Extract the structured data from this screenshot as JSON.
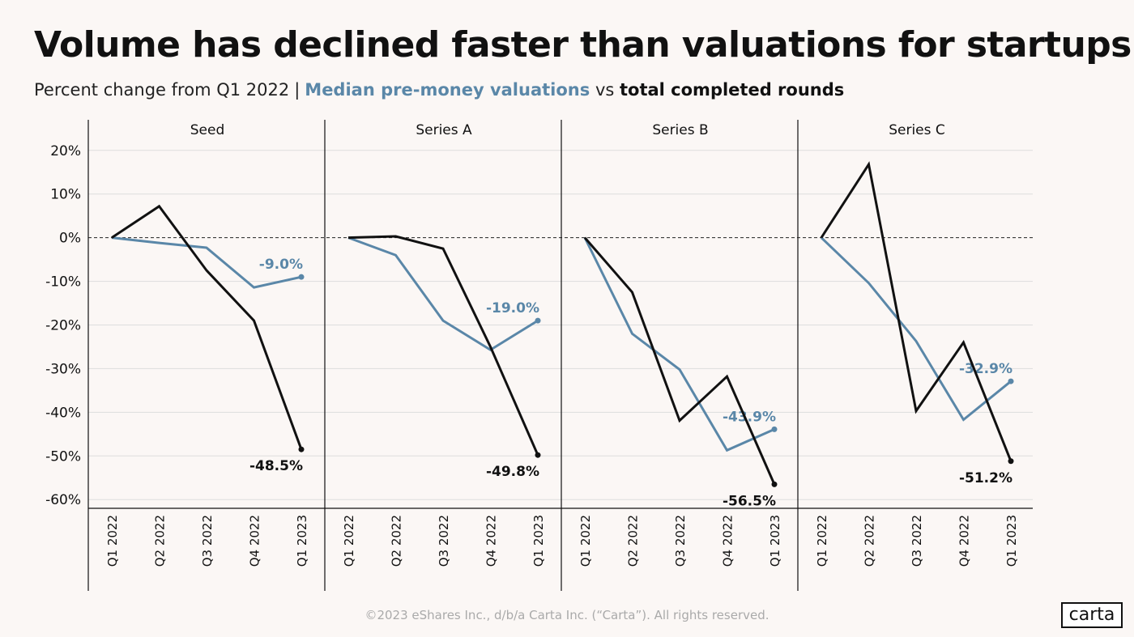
{
  "title": "Volume has declined faster than valuations for startups",
  "subtitle": {
    "prefix": "Percent change from Q1 2022",
    "separator": "|",
    "series_a_label": "Median pre-money valuations",
    "vs": "vs",
    "series_b_label": "total completed rounds"
  },
  "colors": {
    "valuations": "#5a87a8",
    "rounds": "#111111",
    "background": "#fbf7f5",
    "grid": "#dddddd"
  },
  "chart_data": [
    {
      "type": "line",
      "panel": "Seed",
      "x": [
        "Q1 2022",
        "Q2 2022",
        "Q3 2022",
        "Q4 2022",
        "Q1 2023"
      ],
      "ylim": [
        -62,
        22
      ],
      "yticks": [
        "20%",
        "10%",
        "0%",
        "-10%",
        "-20%",
        "-30%",
        "-40%",
        "-50%",
        "-60%"
      ],
      "series": [
        {
          "key": "valuations",
          "values": [
            0,
            -1.2,
            -2.3,
            -11.4,
            -9.0
          ],
          "end_label": "-9.0%"
        },
        {
          "key": "rounds",
          "values": [
            0,
            7.2,
            -7.5,
            -19.0,
            -48.5
          ],
          "end_label": "-48.5%"
        }
      ]
    },
    {
      "type": "line",
      "panel": "Series A",
      "x": [
        "Q1 2022",
        "Q2 2022",
        "Q3 2022",
        "Q4 2022",
        "Q1 2023"
      ],
      "ylim": [
        -62,
        22
      ],
      "series": [
        {
          "key": "valuations",
          "values": [
            0,
            -4.0,
            -19.0,
            -25.7,
            -19.0
          ],
          "end_label": "-19.0%"
        },
        {
          "key": "rounds",
          "values": [
            0,
            0.3,
            -2.5,
            -25.0,
            -49.8
          ],
          "end_label": "-49.8%"
        }
      ]
    },
    {
      "type": "line",
      "panel": "Series B",
      "x": [
        "Q1 2022",
        "Q2 2022",
        "Q3 2022",
        "Q4 2022",
        "Q1 2023"
      ],
      "ylim": [
        -62,
        22
      ],
      "series": [
        {
          "key": "valuations",
          "values": [
            0,
            -22.0,
            -30.2,
            -48.7,
            -43.9
          ],
          "end_label": "-43.9%"
        },
        {
          "key": "rounds",
          "values": [
            0,
            -12.5,
            -41.9,
            -31.8,
            -56.5
          ],
          "end_label": "-56.5%"
        }
      ]
    },
    {
      "type": "line",
      "panel": "Series C",
      "x": [
        "Q1 2022",
        "Q2 2022",
        "Q3 2022",
        "Q4 2022",
        "Q1 2023"
      ],
      "ylim": [
        -62,
        22
      ],
      "series": [
        {
          "key": "valuations",
          "values": [
            0,
            -10.4,
            -23.7,
            -41.7,
            -32.9
          ],
          "end_label": "-32.9%"
        },
        {
          "key": "rounds",
          "values": [
            0,
            16.8,
            -39.7,
            -24.0,
            -51.2
          ],
          "end_label": "-51.2%"
        }
      ]
    }
  ],
  "footer": "©2023 eShares Inc., d/b/a Carta Inc. (“Carta”). All rights reserved.",
  "logo": "carta"
}
